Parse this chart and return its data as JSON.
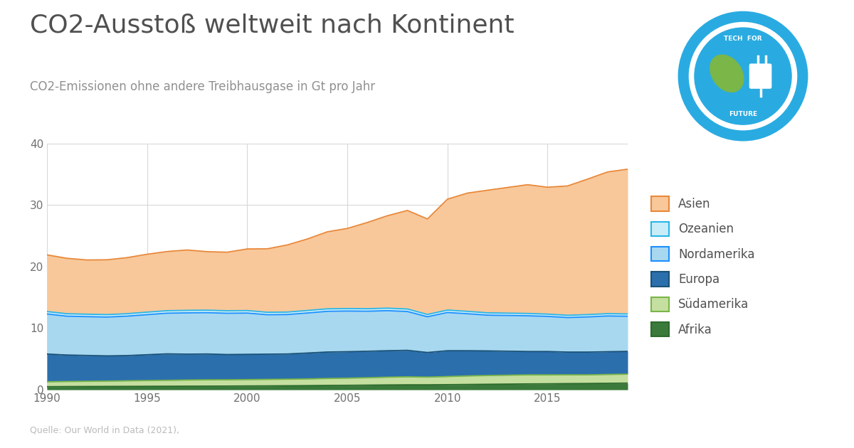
{
  "title": "CO2-Ausstoss weltweit nach Kontinent",
  "title_display": "CO2-Ausstoß weltweit nach Kontinent",
  "subtitle": "CO2-Emissionen ohne andere Treibhausgase in Gt pro Jahr",
  "source": "Quelle: Our World in Data (2021),",
  "years": [
    1990,
    1991,
    1992,
    1993,
    1994,
    1995,
    1996,
    1997,
    1998,
    1999,
    2000,
    2001,
    2002,
    2003,
    2004,
    2005,
    2006,
    2007,
    2008,
    2009,
    2010,
    2011,
    2012,
    2013,
    2014,
    2015,
    2016,
    2017,
    2018,
    2019
  ],
  "series": {
    "Afrika": [
      0.5,
      0.52,
      0.53,
      0.54,
      0.55,
      0.56,
      0.57,
      0.58,
      0.59,
      0.6,
      0.62,
      0.63,
      0.65,
      0.67,
      0.7,
      0.72,
      0.75,
      0.78,
      0.8,
      0.8,
      0.83,
      0.86,
      0.89,
      0.92,
      0.95,
      0.97,
      1.0,
      1.02,
      1.05,
      1.08
    ],
    "Südamerika": [
      0.8,
      0.82,
      0.84,
      0.86,
      0.9,
      0.93,
      0.96,
      1.0,
      1.02,
      1.02,
      1.03,
      1.05,
      1.06,
      1.09,
      1.13,
      1.16,
      1.2,
      1.26,
      1.3,
      1.25,
      1.31,
      1.38,
      1.42,
      1.44,
      1.46,
      1.44,
      1.42,
      1.4,
      1.43,
      1.45
    ],
    "Europa": [
      4.5,
      4.3,
      4.2,
      4.1,
      4.1,
      4.2,
      4.3,
      4.2,
      4.2,
      4.1,
      4.1,
      4.1,
      4.1,
      4.2,
      4.3,
      4.3,
      4.3,
      4.3,
      4.3,
      4.0,
      4.2,
      4.1,
      4.0,
      3.9,
      3.8,
      3.8,
      3.7,
      3.7,
      3.7,
      3.7
    ],
    "Nordamerika": [
      6.5,
      6.3,
      6.3,
      6.3,
      6.4,
      6.5,
      6.6,
      6.7,
      6.7,
      6.7,
      6.7,
      6.4,
      6.4,
      6.5,
      6.6,
      6.6,
      6.5,
      6.5,
      6.3,
      5.8,
      6.2,
      6.0,
      5.8,
      5.8,
      5.8,
      5.7,
      5.6,
      5.7,
      5.8,
      5.7
    ],
    "Ozeanien": [
      0.4,
      0.4,
      0.4,
      0.4,
      0.4,
      0.41,
      0.41,
      0.41,
      0.41,
      0.41,
      0.41,
      0.4,
      0.4,
      0.41,
      0.41,
      0.41,
      0.41,
      0.41,
      0.41,
      0.38,
      0.4,
      0.39,
      0.38,
      0.38,
      0.38,
      0.37,
      0.37,
      0.38,
      0.38,
      0.38
    ],
    "Asien": [
      9.2,
      9.0,
      8.8,
      8.9,
      9.1,
      9.4,
      9.6,
      9.8,
      9.5,
      9.5,
      10.0,
      10.3,
      10.9,
      11.6,
      12.5,
      13.0,
      14.0,
      15.0,
      16.0,
      15.5,
      18.0,
      19.2,
      19.9,
      20.4,
      20.9,
      20.6,
      21.0,
      22.0,
      23.0,
      23.5
    ]
  },
  "line_colors": {
    "Afrika": "#2d6a2d",
    "Südamerika": "#7ab648",
    "Europa": "#1a5276",
    "Nordamerika": "#1e90ff",
    "Ozeanien": "#29b6e8",
    "Asien": "#e8883a"
  },
  "fill_colors": {
    "Afrika": "#3a7a3a",
    "Südamerika": "#c5dfa0",
    "Europa": "#2c6fad",
    "Nordamerika": "#a8d8f0",
    "Ozeanien": "#c8edf8",
    "Asien": "#f8c89a"
  },
  "stack_order": [
    "Afrika",
    "Südamerika",
    "Europa",
    "Nordamerika",
    "Ozeanien",
    "Asien"
  ],
  "legend_order": [
    "Asien",
    "Ozeanien",
    "Nordamerika",
    "Europa",
    "Südamerika",
    "Afrika"
  ],
  "ylim": [
    0,
    40
  ],
  "yticks": [
    0,
    10,
    20,
    30,
    40
  ],
  "xticks": [
    1990,
    1995,
    2000,
    2005,
    2010,
    2015
  ],
  "background_color": "#ffffff",
  "title_color": "#505050",
  "subtitle_color": "#909090",
  "source_color": "#bbbbbb",
  "grid_color": "#d8d8d8",
  "tick_color": "#707070"
}
